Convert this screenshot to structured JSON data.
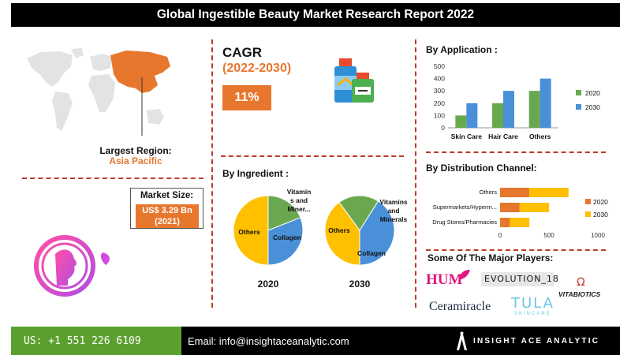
{
  "header": {
    "title": "Global Ingestible Beauty Market Research Report 2022"
  },
  "region": {
    "label": "Largest Region:",
    "value": "Asia Pacific"
  },
  "market_size": {
    "label": "Market Size:",
    "line1": "US$ 3.29 Bn",
    "line2": "(2021)"
  },
  "cagr": {
    "title": "CAGR",
    "years": "(2022-2030)",
    "value": "11%"
  },
  "by_ingredient": {
    "title": "By Ingredient :"
  },
  "by_application": {
    "title": "By Application :"
  },
  "by_distribution": {
    "title": "By Distribution Channel:"
  },
  "players": {
    "title": "Some Of The Major Players:",
    "names": [
      "HUM",
      "EVOLUTION_18",
      "VITABIOTICS",
      "Ceramiracle",
      "TULA",
      "SKINCARE"
    ]
  },
  "footer": {
    "phone": "US: +1 551 226 6109",
    "email": "Email: info@insightaceanalytic.com",
    "brand": "INSIGHT ACE ANALYTIC"
  },
  "colors": {
    "orange": "#e8772e",
    "green": "#5ba02e",
    "blue": "#4a90d9",
    "yellow": "#ffc000",
    "chart_green": "#6aa84f"
  },
  "chart_data": [
    {
      "type": "pie",
      "title": "2020",
      "slices": [
        {
          "label": "Others",
          "value": 50,
          "display": "Others",
          "color": "#ffc000"
        },
        {
          "label": "Vitamins and Minerals",
          "value": 19,
          "display": "Vitamin|s and|Miner...",
          "color": "#6aa84f"
        },
        {
          "label": "Collagen",
          "value": 31,
          "display": "Collagen",
          "color": "#4a90d9"
        }
      ]
    },
    {
      "type": "pie",
      "title": "2030",
      "slices": [
        {
          "label": "Others",
          "value": 40,
          "display": "Others",
          "color": "#ffc000"
        },
        {
          "label": "Vitamins and Minerals",
          "value": 19,
          "display": "Vitamins|and|Minerals",
          "color": "#6aa84f"
        },
        {
          "label": "Collagen",
          "value": 41,
          "display": "Collagen",
          "color": "#4a90d9"
        }
      ]
    },
    {
      "type": "bar",
      "title": "By Application :",
      "categories": [
        "Skin Care",
        "Hair Care",
        "Others"
      ],
      "series": [
        {
          "name": "2020",
          "values": [
            100,
            200,
            300
          ],
          "color": "#6aa84f"
        },
        {
          "name": "2030",
          "values": [
            200,
            300,
            400
          ],
          "color": "#4a90d9"
        }
      ],
      "ylim": [
        0,
        500
      ],
      "yticks": [
        0,
        100,
        200,
        300,
        400,
        500
      ],
      "legend": "right"
    },
    {
      "type": "bar",
      "orientation": "horizontal-stacked",
      "title": "By Distribution Channel:",
      "categories": [
        "Others",
        "Supermarkets/Hyperm...",
        "Drug Stores/Pharmacies"
      ],
      "series": [
        {
          "name": "2020",
          "values": [
            300,
            200,
            100
          ],
          "color": "#e8772e"
        },
        {
          "name": "2030",
          "values": [
            400,
            300,
            200
          ],
          "color": "#ffc000"
        }
      ],
      "xlim": [
        0,
        1000
      ],
      "xticks": [
        0,
        500,
        1000
      ],
      "legend": "right"
    }
  ]
}
